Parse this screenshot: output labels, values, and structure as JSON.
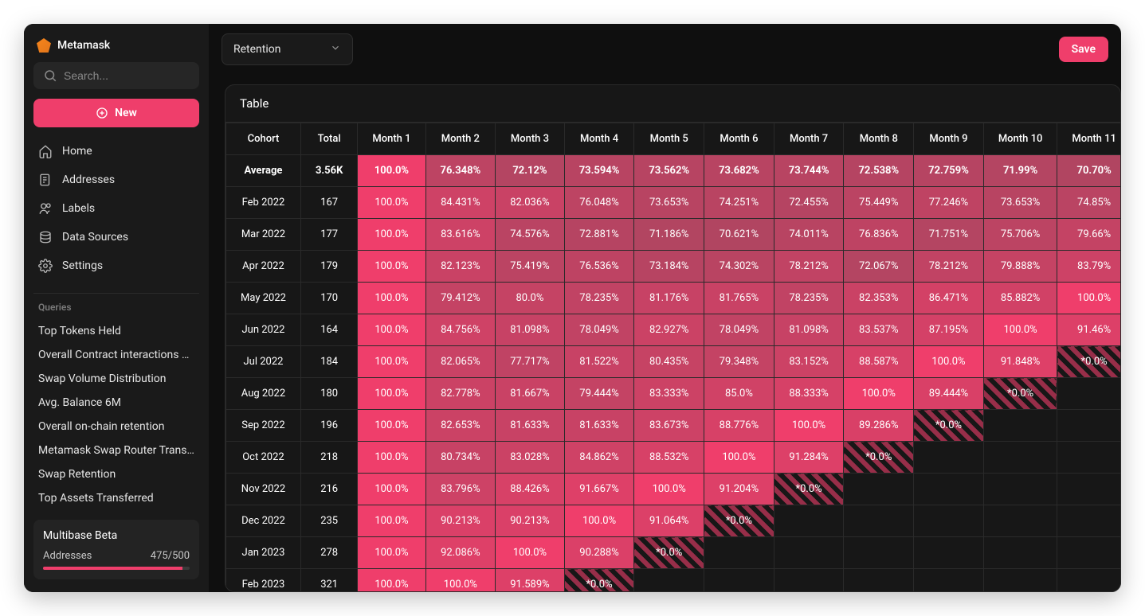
{
  "brand": {
    "name": "Metamask"
  },
  "search": {
    "placeholder": "Search..."
  },
  "newButton": {
    "label": "New"
  },
  "nav": [
    {
      "label": "Home",
      "icon": "home"
    },
    {
      "label": "Addresses",
      "icon": "addresses"
    },
    {
      "label": "Labels",
      "icon": "labels"
    },
    {
      "label": "Data Sources",
      "icon": "data"
    },
    {
      "label": "Settings",
      "icon": "settings"
    }
  ],
  "queriesHeader": "Queries",
  "queries": [
    "Top Tokens Held",
    "Overall Contract interactions Le...",
    "Swap Volume Distribution",
    "Avg. Balance 6M",
    "Overall on-chain retention",
    "Metamask Swap Router Transa...",
    "Swap Retention",
    "Top Assets Transferred"
  ],
  "beta": {
    "title": "Multibase Beta",
    "metric": "Addresses",
    "value": "475/500",
    "pct": 95
  },
  "topbar": {
    "selectValue": "Retention",
    "saveLabel": "Save"
  },
  "table": {
    "title": "Table",
    "columns": [
      "Cohort",
      "Total",
      "Month 1",
      "Month 2",
      "Month 3",
      "Month 4",
      "Month 5",
      "Month 6",
      "Month 7",
      "Month 8",
      "Month 9",
      "Month 10",
      "Month 11"
    ],
    "colorScale": {
      "min": "#c94c67",
      "max": "#ef3e6b",
      "fullPink": "#ef3e6b"
    },
    "rows": [
      {
        "cohort": "Average",
        "total": "3.56K",
        "bold": true,
        "cells": [
          "100.0%",
          "76.348%",
          "72.12%",
          "73.594%",
          "73.562%",
          "73.682%",
          "73.744%",
          "72.538%",
          "72.759%",
          "71.99%",
          "70.70%"
        ]
      },
      {
        "cohort": "Feb 2022",
        "total": "167",
        "cells": [
          "100.0%",
          "84.431%",
          "82.036%",
          "76.048%",
          "73.653%",
          "74.251%",
          "72.455%",
          "75.449%",
          "77.246%",
          "73.653%",
          "74.85%"
        ]
      },
      {
        "cohort": "Mar 2022",
        "total": "177",
        "cells": [
          "100.0%",
          "83.616%",
          "74.576%",
          "72.881%",
          "71.186%",
          "70.621%",
          "74.011%",
          "76.836%",
          "71.751%",
          "75.706%",
          "79.66%"
        ]
      },
      {
        "cohort": "Apr 2022",
        "total": "179",
        "cells": [
          "100.0%",
          "82.123%",
          "75.419%",
          "76.536%",
          "73.184%",
          "74.302%",
          "78.212%",
          "72.067%",
          "78.212%",
          "79.888%",
          "83.79%"
        ]
      },
      {
        "cohort": "May 2022",
        "total": "170",
        "cells": [
          "100.0%",
          "79.412%",
          "80.0%",
          "78.235%",
          "81.176%",
          "81.765%",
          "78.235%",
          "82.353%",
          "86.471%",
          "85.882%",
          "100.0%"
        ]
      },
      {
        "cohort": "Jun 2022",
        "total": "164",
        "cells": [
          "100.0%",
          "84.756%",
          "81.098%",
          "78.049%",
          "82.927%",
          "78.049%",
          "81.098%",
          "83.537%",
          "87.195%",
          "100.0%",
          "91.46%"
        ]
      },
      {
        "cohort": "Jul 2022",
        "total": "184",
        "cells": [
          "100.0%",
          "82.065%",
          "77.717%",
          "81.522%",
          "80.435%",
          "79.348%",
          "83.152%",
          "88.587%",
          "100.0%",
          "91.848%",
          "*0.0%"
        ]
      },
      {
        "cohort": "Aug 2022",
        "total": "180",
        "cells": [
          "100.0%",
          "82.778%",
          "81.667%",
          "79.444%",
          "83.333%",
          "85.0%",
          "88.333%",
          "100.0%",
          "89.444%",
          "*0.0%",
          ""
        ]
      },
      {
        "cohort": "Sep 2022",
        "total": "196",
        "cells": [
          "100.0%",
          "82.653%",
          "81.633%",
          "81.633%",
          "83.673%",
          "88.776%",
          "100.0%",
          "89.286%",
          "*0.0%",
          "",
          ""
        ]
      },
      {
        "cohort": "Oct 2022",
        "total": "218",
        "cells": [
          "100.0%",
          "80.734%",
          "83.028%",
          "84.862%",
          "88.532%",
          "100.0%",
          "91.284%",
          "*0.0%",
          "",
          "",
          ""
        ]
      },
      {
        "cohort": "Nov 2022",
        "total": "216",
        "cells": [
          "100.0%",
          "83.796%",
          "88.426%",
          "91.667%",
          "100.0%",
          "91.204%",
          "*0.0%",
          "",
          "",
          "",
          ""
        ]
      },
      {
        "cohort": "Dec 2022",
        "total": "235",
        "cells": [
          "100.0%",
          "90.213%",
          "90.213%",
          "100.0%",
          "91.064%",
          "*0.0%",
          "",
          "",
          "",
          "",
          ""
        ]
      },
      {
        "cohort": "Jan 2023",
        "total": "278",
        "cells": [
          "100.0%",
          "92.086%",
          "100.0%",
          "90.288%",
          "*0.0%",
          "",
          "",
          "",
          "",
          "",
          ""
        ]
      },
      {
        "cohort": "Feb 2023",
        "total": "321",
        "cells": [
          "100.0%",
          "100.0%",
          "91.589%",
          "*0.0%",
          "",
          "",
          "",
          "",
          "",
          "",
          ""
        ]
      }
    ]
  }
}
